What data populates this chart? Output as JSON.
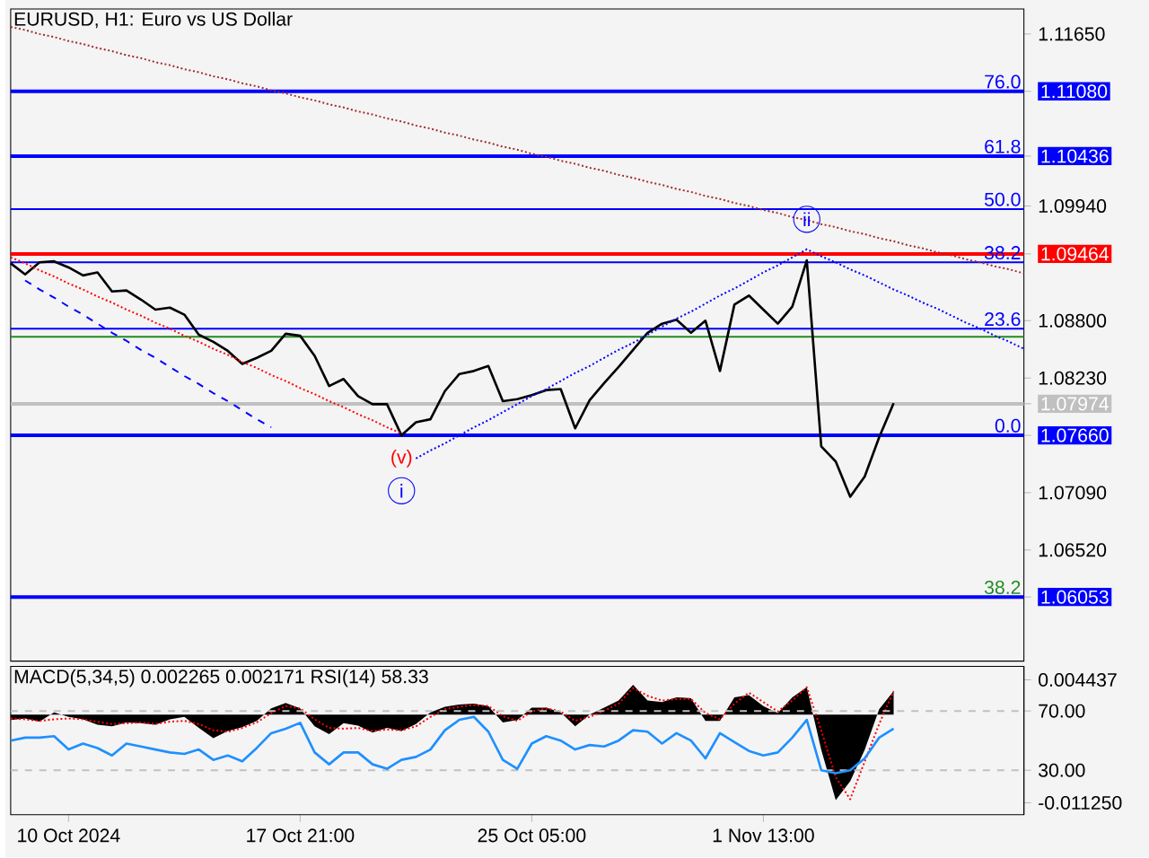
{
  "chart_data": [
    {
      "type": "line",
      "title": "EURUSD, H1:  Euro vs US Dollar",
      "ylim": [
        1.05416,
        1.11899
      ],
      "categories": [
        null,
        null,
        null,
        null,
        null,
        null,
        null,
        null,
        null,
        null,
        null,
        null,
        null,
        null,
        null,
        null,
        null,
        null,
        null,
        null,
        null,
        null,
        null,
        null,
        null,
        null,
        null,
        null,
        null,
        null,
        null,
        null,
        null,
        null,
        null,
        null,
        null,
        null,
        null,
        null,
        null,
        null,
        null,
        null,
        null,
        null,
        null,
        null,
        null,
        null,
        null,
        null,
        null,
        null,
        null,
        null,
        null,
        null,
        null,
        null,
        null,
        null,
        null,
        null,
        null,
        null,
        null,
        null,
        null,
        null,
        null
      ],
      "yticks": [
        {
          "value": 1.1165,
          "label": "1.11650"
        },
        {
          "value": 1.1108,
          "label": "1.11080"
        },
        {
          "value": 1.10436,
          "label": "1.10436"
        },
        {
          "value": 1.0994,
          "label": "1.09940"
        },
        {
          "value": 1.09464,
          "label": "1.09464"
        },
        {
          "value": 1.088,
          "label": "1.08800"
        },
        {
          "value": 1.0823,
          "label": "1.08230"
        },
        {
          "value": 1.07974,
          "label": "1.07974"
        },
        {
          "value": 1.0766,
          "label": "1.07660"
        },
        {
          "value": 1.0709,
          "label": "1.07090"
        },
        {
          "value": 1.0652,
          "label": "1.06520"
        },
        {
          "value": 1.06053,
          "label": "1.06053"
        }
      ],
      "series": [
        {
          "color": "#000000",
          "values": [
            1.0937,
            1.0926,
            1.0938,
            1.0939,
            1.0933,
            1.0925,
            1.0928,
            1.0909,
            1.091,
            1.0901,
            1.0891,
            1.0893,
            1.0886,
            1.0866,
            1.0859,
            1.085,
            1.0837,
            1.0843,
            1.085,
            1.0867,
            1.0865,
            1.0845,
            1.0815,
            1.0822,
            1.0805,
            1.0797,
            1.0797,
            1.0766,
            1.0779,
            1.0782,
            1.081,
            1.0827,
            1.083,
            1.0835,
            1.08,
            1.0802,
            1.0806,
            1.0811,
            1.0812,
            1.0773,
            1.0801,
            1.0818,
            1.0834,
            1.0851,
            1.0868,
            1.0877,
            1.0881,
            1.0868,
            1.088,
            1.083,
            1.0896,
            1.0905,
            1.0891,
            1.0877,
            1.0894,
            1.094,
            1.0755,
            1.074,
            1.0705,
            1.0725,
            1.0764,
            1.0798,
            null,
            null,
            null,
            null,
            null,
            null,
            null,
            null,
            null
          ]
        },
        {
          "color": "#a52a2a",
          "line_style": "dotted",
          "values": [
            1.1172,
            1.1169,
            1.1165,
            1.1162,
            1.1158,
            1.1155,
            1.1151,
            1.1148,
            1.1144,
            1.1141,
            1.1137,
            1.1134,
            1.113,
            1.1127,
            1.1123,
            1.112,
            1.1116,
            1.1113,
            1.1109,
            1.1106,
            1.1102,
            1.1099,
            1.1095,
            1.1092,
            1.1088,
            1.1085,
            1.1081,
            1.1078,
            1.1074,
            1.1071,
            1.1067,
            1.1064,
            1.106,
            1.1057,
            1.1053,
            1.105,
            1.1046,
            1.1043,
            1.1039,
            1.1036,
            1.1032,
            1.1029,
            1.1025,
            1.1022,
            1.1018,
            1.1015,
            1.1011,
            1.1008,
            1.1004,
            1.1001,
            1.0997,
            1.0994,
            1.099,
            1.0987,
            1.0983,
            1.098,
            1.0976,
            1.0973,
            1.0969,
            1.0966,
            1.0962,
            1.0959,
            1.0955,
            1.0952,
            1.0948,
            1.0945,
            1.0941,
            1.0938,
            1.0934,
            1.0931,
            1.0927
          ]
        },
        {
          "color": "#0000ff",
          "line_style": "dashed",
          "values": [
            null,
            1.092,
            1.0911,
            1.0903,
            1.0894,
            1.0886,
            1.0877,
            1.0868,
            1.086,
            1.0851,
            1.0843,
            1.0834,
            1.0825,
            1.0817,
            1.0808,
            1.08,
            1.0791,
            1.0782,
            1.0774,
            null,
            null,
            null,
            null,
            null,
            null,
            null,
            null,
            null,
            null,
            null,
            null,
            null,
            null,
            null,
            null,
            null,
            null,
            null,
            null,
            null,
            null,
            null,
            null,
            null,
            null,
            null,
            null,
            null,
            null,
            null,
            null,
            null,
            null,
            null,
            null,
            null,
            null,
            null,
            null,
            null,
            null,
            null,
            null,
            null,
            null,
            null,
            null,
            null,
            null,
            null,
            null
          ]
        },
        {
          "color": "#ff0000",
          "line_style": "dotted",
          "values": [
            1.0943,
            1.0937,
            1.093,
            1.0924,
            1.0917,
            1.0911,
            1.0904,
            1.0898,
            1.0891,
            1.0885,
            1.0878,
            1.0872,
            1.0865,
            1.0859,
            1.0852,
            1.0846,
            1.0839,
            1.0833,
            1.0826,
            1.082,
            1.0813,
            1.0807,
            1.08,
            1.0794,
            1.0787,
            1.0781,
            1.0774,
            1.0768,
            null,
            null,
            null,
            null,
            null,
            null,
            null,
            null,
            null,
            null,
            null,
            null,
            null,
            null,
            null,
            null,
            null,
            null,
            null,
            null,
            null,
            null,
            null,
            null,
            null,
            null,
            null,
            null,
            null,
            null,
            null,
            null,
            null,
            null,
            null,
            null,
            null,
            null,
            null,
            null,
            null,
            null,
            null
          ]
        },
        {
          "color": "#0000ff",
          "line_style": "dotted",
          "values": [
            null,
            null,
            null,
            null,
            null,
            null,
            null,
            null,
            null,
            null,
            null,
            null,
            null,
            null,
            null,
            null,
            null,
            null,
            null,
            null,
            null,
            null,
            null,
            null,
            null,
            null,
            null,
            null,
            1.0743,
            1.0751,
            1.0758,
            1.0766,
            1.0774,
            1.0781,
            1.0789,
            1.0797,
            1.0805,
            1.0812,
            1.082,
            1.0828,
            1.0835,
            1.0843,
            1.0851,
            1.0858,
            1.0866,
            1.0874,
            1.0882,
            1.0889,
            1.0897,
            1.0905,
            1.0912,
            1.092,
            1.0928,
            1.0935,
            1.0943,
            1.0951,
            1.0944,
            1.0938,
            1.0931,
            1.0925,
            1.0918,
            1.0911,
            1.0905,
            1.0898,
            1.0892,
            1.0885,
            1.0878,
            1.0872,
            1.0865,
            1.0859,
            1.0852
          ]
        }
      ],
      "ref_lines": [
        {
          "axis": "y",
          "value": 1.1108,
          "color": "#0000ff"
        },
        {
          "axis": "y",
          "value": 1.10436,
          "color": "#0000ff"
        },
        {
          "axis": "y",
          "value": 1.0991,
          "color": "#0000ff"
        },
        {
          "axis": "y",
          "value": 1.09464,
          "color": "#ff0000"
        },
        {
          "axis": "y",
          "value": 1.0938,
          "color": "#0000ff"
        },
        {
          "axis": "y",
          "value": 1.0864,
          "color": "#228b22"
        },
        {
          "axis": "y",
          "value": 1.0872,
          "color": "#0000ff"
        },
        {
          "axis": "y",
          "value": 1.07974,
          "color": "#c0c0c0"
        },
        {
          "axis": "y",
          "value": 1.0766,
          "color": "#0000ff"
        },
        {
          "axis": "y",
          "value": 1.06053,
          "color": "#0000ff"
        }
      ],
      "annotations": [
        {
          "text": "76.0",
          "y": 1.1108
        },
        {
          "text": "61.8",
          "y": 1.10436
        },
        {
          "text": "50.0",
          "y": 1.0991
        },
        {
          "text": "38.2",
          "y": 1.0938
        },
        {
          "text": "23.6",
          "y": 1.0872
        },
        {
          "text": "0.0",
          "y": 1.0766
        },
        {
          "text": "38.2",
          "y": 1.06053
        },
        {
          "text": "(v)",
          "y": 1.0766
        },
        {
          "text": "i",
          "y": 1.0766
        },
        {
          "text": "ii",
          "y": 1.094
        }
      ]
    },
    {
      "type": "area",
      "title": "MACD(5,34,5) 0.002265 0.002171 RSI(14) 58.33",
      "ylim": [
        -0.01278,
        0.00615
      ],
      "categories": [
        null,
        null,
        null,
        null,
        "10 Oct 2024",
        null,
        null,
        null,
        null,
        null,
        null,
        null,
        null,
        null,
        null,
        null,
        null,
        null,
        null,
        null,
        "17 Oct 21:00",
        null,
        null,
        null,
        null,
        null,
        null,
        null,
        null,
        null,
        null,
        null,
        null,
        null,
        null,
        null,
        "25 Oct 05:00",
        null,
        null,
        null,
        null,
        null,
        null,
        null,
        null,
        null,
        null,
        null,
        null,
        null,
        null,
        null,
        "1 Nov 13:00",
        null,
        null,
        null,
        null,
        null,
        null,
        null,
        null,
        null,
        null,
        null,
        null,
        null,
        null,
        null,
        null,
        null,
        null
      ],
      "yticks": [
        0.004437,
        {
          "value": -0.01125,
          "label": "-0.011250"
        }
      ],
      "y2lim": [
        0,
        100
      ],
      "y2ticks": [
        {
          "value": 70,
          "label": "70.00"
        },
        {
          "value": 30,
          "label": "30.00"
        }
      ],
      "series": [
        {
          "type": "area",
          "color": "#000000",
          "values": [
            -0.0007,
            -0.0005,
            -0.0009,
            0.0003,
            -0.0003,
            -0.0006,
            -0.0013,
            -0.0015,
            -0.001,
            -0.0011,
            -0.0013,
            -0.0006,
            -0.0003,
            -0.0017,
            -0.003,
            -0.0021,
            -0.0016,
            -0.0008,
            0.0008,
            0.0015,
            0.0008,
            -0.0015,
            -0.0025,
            -0.0011,
            -0.0014,
            -0.0023,
            -0.0017,
            -0.0021,
            -0.0012,
            0.0003,
            0.001,
            0.0013,
            0.0014,
            0.0011,
            -0.001,
            -0.0007,
            0.0009,
            0.0009,
            0.0003,
            -0.0015,
            0.0,
            0.0009,
            0.0018,
            0.0038,
            0.0018,
            0.0016,
            0.0022,
            0.0021,
            -0.0008,
            -0.0008,
            0.0022,
            0.0025,
            0.0011,
            0.0002,
            0.0022,
            0.0035,
            -0.0045,
            -0.0109,
            -0.0085,
            -0.0045,
            0.0007,
            0.003,
            null,
            null,
            null,
            null,
            null,
            null,
            null,
            null,
            null
          ]
        },
        {
          "type": "line",
          "color": "#ff0000",
          "line_style": "dotted",
          "values": [
            -0.0005,
            -0.0006,
            -0.0008,
            -0.0006,
            -0.0005,
            -0.0006,
            -0.0009,
            -0.0012,
            -0.0011,
            -0.001,
            -0.0012,
            -0.0009,
            -0.0008,
            -0.0012,
            -0.002,
            -0.0022,
            -0.0017,
            -0.001,
            0.0002,
            0.0011,
            0.0008,
            -0.0006,
            -0.0017,
            -0.0018,
            -0.0017,
            -0.0021,
            -0.0019,
            -0.002,
            -0.0015,
            -0.0003,
            0.0007,
            0.001,
            0.0012,
            0.0011,
            -0.0002,
            -0.0008,
            0.0004,
            0.0008,
            0.0004,
            -0.0008,
            -0.0003,
            0.0005,
            0.0014,
            0.0034,
            0.0024,
            0.0018,
            0.002,
            0.002,
            0.0002,
            -0.0006,
            0.0014,
            0.0028,
            0.0016,
            0.0004,
            0.0018,
            0.0035,
            -0.002,
            -0.008,
            -0.0108,
            -0.006,
            -0.0012,
            0.003,
            null,
            null,
            null,
            null,
            null,
            null,
            null,
            null,
            null
          ]
        },
        {
          "type": "line",
          "color": "#1e90ff",
          "axis": "y2",
          "values": [
            50,
            52,
            52,
            53,
            44,
            48,
            45,
            40,
            48,
            46,
            44,
            42,
            41,
            44,
            37,
            40,
            36,
            45,
            55,
            58,
            62,
            42,
            34,
            42,
            42,
            34,
            31,
            37,
            39,
            44,
            57,
            64,
            66,
            56,
            37,
            31,
            48,
            53,
            50,
            44,
            47,
            46,
            50,
            57,
            56,
            48,
            55,
            50,
            38,
            55,
            49,
            43,
            40,
            42,
            52,
            64,
            30,
            28,
            30,
            38,
            52,
            58,
            null,
            null,
            null,
            null,
            null,
            null,
            null,
            null,
            null
          ]
        }
      ],
      "ref_lines": [
        {
          "axis": "y2",
          "value": 70,
          "color": "#c0c0c0",
          "line_style": "dashed"
        },
        {
          "axis": "y2",
          "value": 30,
          "color": "#c0c0c0",
          "line_style": "dashed"
        }
      ]
    }
  ]
}
